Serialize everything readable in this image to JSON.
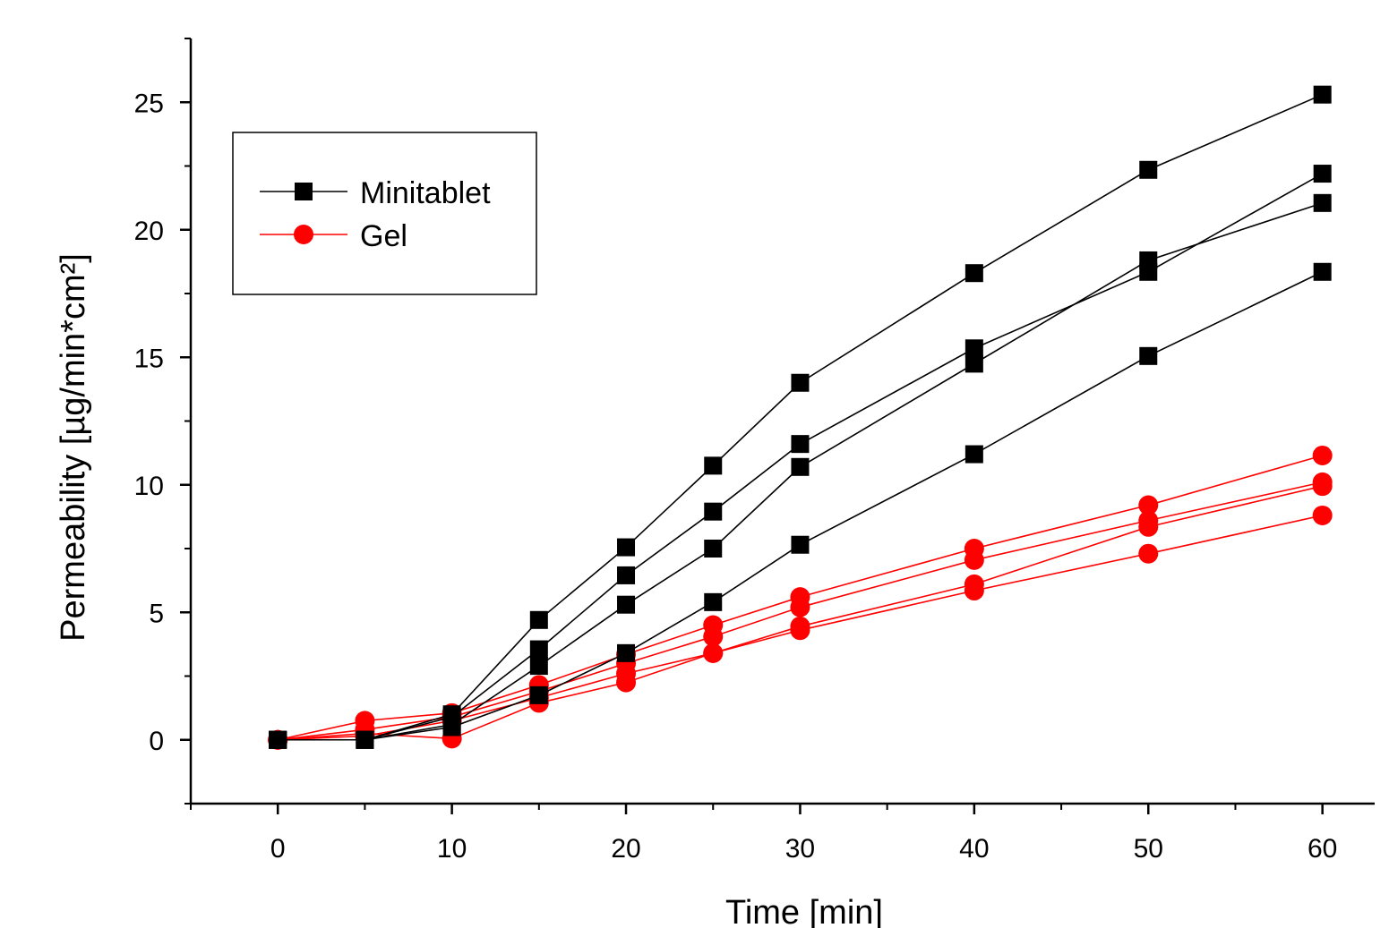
{
  "chart_data": {
    "type": "line",
    "xlabel": "Time [min]",
    "ylabel": "Permeability [µg/min*cm²]",
    "xlim": [
      -5,
      63
    ],
    "ylim": [
      -2.5,
      27.5
    ],
    "xticks": [
      0,
      10,
      20,
      30,
      40,
      50,
      60
    ],
    "yticks": [
      0,
      5,
      10,
      15,
      20,
      25
    ],
    "x": [
      0,
      5,
      10,
      15,
      20,
      25,
      30,
      40,
      50,
      60
    ],
    "grid": false,
    "legend": {
      "placement": "top-left",
      "entries": [
        {
          "name": "Minitablet",
          "color": "#000000",
          "marker": "square"
        },
        {
          "name": "Gel",
          "color": "#ff0000",
          "marker": "circle"
        }
      ]
    },
    "series": [
      {
        "group": "Minitablet",
        "color": "#000000",
        "marker": "square",
        "values": [
          0,
          0,
          1.0,
          4.7,
          7.55,
          10.75,
          14.0,
          18.3,
          22.35,
          25.3
        ]
      },
      {
        "group": "Minitablet",
        "color": "#000000",
        "marker": "square",
        "values": [
          0,
          0,
          0.9,
          3.55,
          6.45,
          8.95,
          11.6,
          15.35,
          18.35,
          22.2
        ]
      },
      {
        "group": "Minitablet",
        "color": "#000000",
        "marker": "square",
        "values": [
          0,
          0,
          0.6,
          2.9,
          5.3,
          7.5,
          10.7,
          14.75,
          18.8,
          21.05
        ]
      },
      {
        "group": "Minitablet",
        "color": "#000000",
        "marker": "square",
        "values": [
          0,
          0,
          0.5,
          1.75,
          3.4,
          5.4,
          7.65,
          11.2,
          15.05,
          18.35
        ]
      },
      {
        "group": "Gel",
        "color": "#ff0000",
        "marker": "circle",
        "values": [
          0,
          0.75,
          1.05,
          2.15,
          3.35,
          4.5,
          5.6,
          7.5,
          9.2,
          11.15
        ]
      },
      {
        "group": "Gel",
        "color": "#ff0000",
        "marker": "circle",
        "values": [
          0,
          0.4,
          0.9,
          1.9,
          3.0,
          4.05,
          5.2,
          7.05,
          8.6,
          10.1
        ]
      },
      {
        "group": "Gel",
        "color": "#ff0000",
        "marker": "circle",
        "values": [
          0,
          0.15,
          0.75,
          1.65,
          2.6,
          3.4,
          4.45,
          6.1,
          8.35,
          9.95
        ]
      },
      {
        "group": "Gel",
        "color": "#ff0000",
        "marker": "circle",
        "values": [
          0,
          0.25,
          0.05,
          1.45,
          2.25,
          3.4,
          4.3,
          5.85,
          7.3,
          8.8
        ]
      }
    ]
  }
}
